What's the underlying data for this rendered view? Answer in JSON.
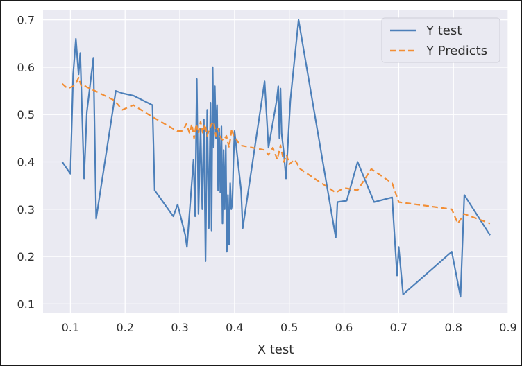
{
  "chart_data": {
    "type": "line",
    "title": "",
    "xlabel": "X test",
    "ylabel": "",
    "xlim": [
      0.05,
      0.9
    ],
    "ylim": [
      0.08,
      0.72
    ],
    "xticks": [
      0.1,
      0.2,
      0.3,
      0.4,
      0.5,
      0.6,
      0.7,
      0.8,
      0.9
    ],
    "xtick_labels": [
      "0.1",
      "0.2",
      "0.3",
      "0.4",
      "0.5",
      "0.6",
      "0.7",
      "0.8",
      "0.9"
    ],
    "yticks": [
      0.1,
      0.2,
      0.3,
      0.4,
      0.5,
      0.6,
      0.7
    ],
    "ytick_labels": [
      "0.1",
      "0.2",
      "0.3",
      "0.4",
      "0.5",
      "0.6",
      "0.7"
    ],
    "grid": true,
    "legend_position": "top-right",
    "colors": {
      "plot_bg": "#EAEAF2",
      "grid": "#ffffff",
      "y_test": "#4C7FB9",
      "y_predicts": "#F28E35"
    },
    "series": [
      {
        "name": "Y test",
        "style": "solid",
        "x": [
          0.085,
          0.1,
          0.105,
          0.11,
          0.115,
          0.118,
          0.125,
          0.13,
          0.142,
          0.147,
          0.183,
          0.195,
          0.215,
          0.25,
          0.254,
          0.288,
          0.296,
          0.31,
          0.313,
          0.325,
          0.328,
          0.331,
          0.334,
          0.338,
          0.341,
          0.344,
          0.347,
          0.35,
          0.353,
          0.356,
          0.358,
          0.36,
          0.362,
          0.364,
          0.366,
          0.368,
          0.37,
          0.372,
          0.374,
          0.376,
          0.378,
          0.38,
          0.382,
          0.384,
          0.386,
          0.388,
          0.39,
          0.392,
          0.394,
          0.396,
          0.398,
          0.4,
          0.412,
          0.415,
          0.455,
          0.462,
          0.477,
          0.48,
          0.482,
          0.484,
          0.486,
          0.49,
          0.494,
          0.502,
          0.517,
          0.585,
          0.588,
          0.605,
          0.625,
          0.655,
          0.688,
          0.697,
          0.7,
          0.708,
          0.797,
          0.813,
          0.82,
          0.867
        ],
        "values": [
          0.4,
          0.375,
          0.585,
          0.66,
          0.585,
          0.63,
          0.365,
          0.505,
          0.62,
          0.28,
          0.55,
          0.545,
          0.54,
          0.52,
          0.34,
          0.285,
          0.31,
          0.245,
          0.22,
          0.405,
          0.285,
          0.575,
          0.29,
          0.47,
          0.3,
          0.49,
          0.19,
          0.51,
          0.26,
          0.525,
          0.255,
          0.6,
          0.43,
          0.56,
          0.45,
          0.52,
          0.34,
          0.47,
          0.335,
          0.475,
          0.27,
          0.425,
          0.3,
          0.435,
          0.21,
          0.33,
          0.225,
          0.355,
          0.3,
          0.31,
          0.4,
          0.465,
          0.34,
          0.26,
          0.57,
          0.43,
          0.53,
          0.56,
          0.45,
          0.555,
          0.46,
          0.42,
          0.365,
          0.53,
          0.7,
          0.24,
          0.315,
          0.318,
          0.4,
          0.315,
          0.325,
          0.16,
          0.22,
          0.12,
          0.21,
          0.115,
          0.33,
          0.245
        ]
      },
      {
        "name": "Y Predicts",
        "style": "dashed",
        "x": [
          0.085,
          0.095,
          0.105,
          0.11,
          0.115,
          0.12,
          0.125,
          0.13,
          0.145,
          0.18,
          0.195,
          0.215,
          0.25,
          0.28,
          0.295,
          0.305,
          0.312,
          0.318,
          0.322,
          0.326,
          0.33,
          0.334,
          0.338,
          0.342,
          0.346,
          0.35,
          0.354,
          0.358,
          0.362,
          0.366,
          0.37,
          0.375,
          0.38,
          0.385,
          0.39,
          0.395,
          0.398,
          0.402,
          0.41,
          0.455,
          0.462,
          0.47,
          0.478,
          0.484,
          0.49,
          0.495,
          0.5,
          0.51,
          0.52,
          0.585,
          0.6,
          0.625,
          0.65,
          0.688,
          0.7,
          0.797,
          0.808,
          0.82,
          0.867
        ],
        "values": [
          0.565,
          0.555,
          0.56,
          0.565,
          0.578,
          0.56,
          0.562,
          0.558,
          0.55,
          0.53,
          0.51,
          0.52,
          0.495,
          0.475,
          0.465,
          0.465,
          0.48,
          0.46,
          0.48,
          0.45,
          0.48,
          0.46,
          0.485,
          0.46,
          0.48,
          0.455,
          0.47,
          0.48,
          0.485,
          0.455,
          0.47,
          0.45,
          0.445,
          0.455,
          0.43,
          0.47,
          0.455,
          0.45,
          0.435,
          0.425,
          0.415,
          0.43,
          0.405,
          0.435,
          0.4,
          0.415,
          0.395,
          0.405,
          0.385,
          0.335,
          0.345,
          0.34,
          0.385,
          0.355,
          0.315,
          0.3,
          0.27,
          0.29,
          0.27
        ]
      }
    ]
  }
}
